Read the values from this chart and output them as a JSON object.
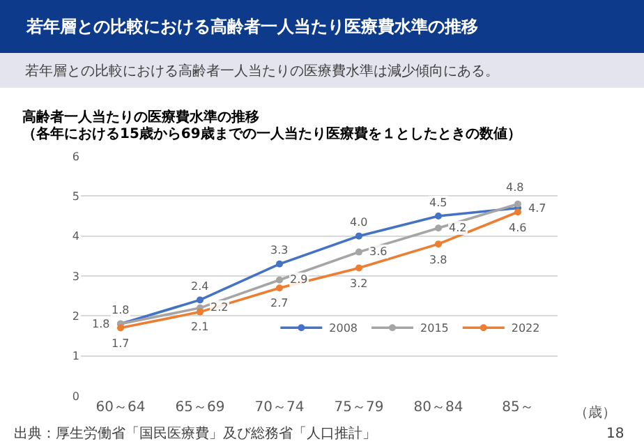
{
  "chart_data": {
    "type": "line",
    "title": "若年層との比較における高齢者一人当たり医療費水準の推移",
    "subtitle": "若年層との比較における高齢者一人当たりの医療費水準は減少傾向にある。",
    "xlabel": "（歳）",
    "categories": [
      "60～64",
      "65～69",
      "70～74",
      "75～79",
      "80～84",
      "85～"
    ],
    "series": [
      {
        "name": "2008",
        "color": "#4472c4",
        "values": [
          1.8,
          2.4,
          3.3,
          4.0,
          4.5,
          4.7
        ],
        "value_labels": [
          "1.8",
          "2.4",
          "3.3",
          "4.0",
          "4.5",
          "4.7"
        ]
      },
      {
        "name": "2015",
        "color": "#a5a5a5",
        "values": [
          1.8,
          2.2,
          2.9,
          3.6,
          4.2,
          4.8
        ],
        "value_labels": [
          "1.8",
          "2.2",
          "2.9",
          "3.6",
          "4.2",
          "4.8"
        ]
      },
      {
        "name": "2022",
        "color": "#ed7d31",
        "values": [
          1.7,
          2.1,
          2.7,
          3.2,
          3.8,
          4.6
        ],
        "value_labels": [
          "1.7",
          "2.1",
          "2.7",
          "3.2",
          "3.8",
          "4.6"
        ]
      }
    ],
    "ylim": [
      0,
      6
    ],
    "yticks": [
      0,
      1,
      2,
      3,
      4,
      5,
      6
    ],
    "grid": "y",
    "legend": "bottom right",
    "marker": "circle",
    "line_style": "solid",
    "annotations": [
      "高齢者一人当たりの医療費水準の推移",
      "（各年における15歳から69歳までの一人当たり医療費を１としたときの数値）",
      "出典：厚生労働省「国民医療費」及び総務省「人口推計」",
      "18"
    ]
  }
}
